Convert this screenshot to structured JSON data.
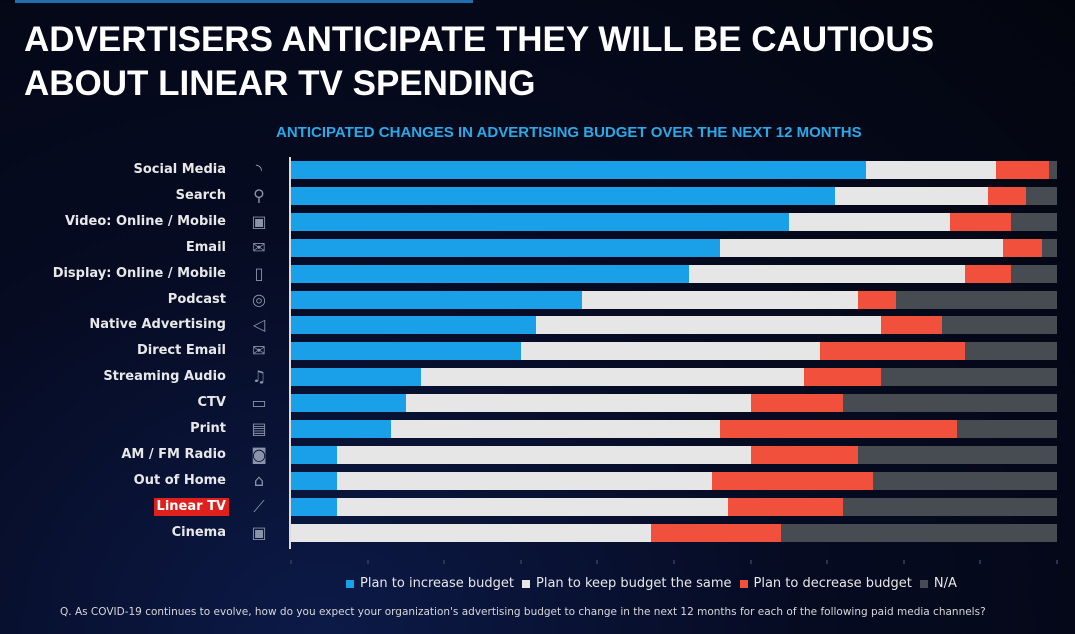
{
  "title": "ADVERTISERS ANTICIPATE THEY WILL BE CAUTIOUS ABOUT LINEAR TV SPENDING",
  "footnote": "Q. As COVID-19 continues to evolve, how do you expect your organization's advertising budget to change in the next 12 months for each of the following paid media channels?",
  "colors": {
    "increase": "#1aa0e8",
    "same": "#e6e6e6",
    "decrease": "#f0503c",
    "na": "#474b52",
    "highlight": "#e0201c",
    "subtitle": "#2aa9e8"
  },
  "chart_data": {
    "type": "bar",
    "orientation": "horizontal",
    "stacked": true,
    "title": "ANTICIPATED CHANGES IN ADVERTISING BUDGET OVER THE NEXT 12 MONTHS",
    "xlim": [
      0,
      100
    ],
    "unit": "%",
    "legend_position": "bottom",
    "highlighted_category": "Linear TV",
    "categories": [
      "Social Media",
      "Search",
      "Video: Online / Mobile",
      "Email",
      "Display: Online / Mobile",
      "Podcast",
      "Native Advertising",
      "Direct Email",
      "Streaming Audio",
      "CTV",
      "Print",
      "AM / FM Radio",
      "Out of Home",
      "Linear TV",
      "Cinema"
    ],
    "icons": [
      "wifi-signal-icon",
      "search-icon",
      "video-screen-icon",
      "envelope-icon",
      "mobile-phone-icon",
      "podcast-icon",
      "megaphone-icon",
      "envelope-icon",
      "headphones-icon",
      "tv-icon",
      "newspaper-icon",
      "radio-icon",
      "house-icon",
      "remote-control-icon",
      "cinema-screen-icon"
    ],
    "series": [
      {
        "name": "Plan to increase budget",
        "key": "increase",
        "values": [
          75,
          71,
          65,
          56,
          52,
          38,
          32,
          30,
          17,
          15,
          13,
          6,
          6,
          6,
          0
        ]
      },
      {
        "name": "Plan to keep budget the same",
        "key": "same",
        "values": [
          17,
          20,
          21,
          37,
          36,
          36,
          45,
          39,
          50,
          45,
          43,
          54,
          49,
          51,
          47
        ]
      },
      {
        "name": "Plan to decrease budget",
        "key": "decrease",
        "values": [
          7,
          5,
          8,
          5,
          6,
          5,
          8,
          19,
          10,
          12,
          31,
          14,
          21,
          15,
          17
        ]
      },
      {
        "name": "N/A",
        "key": "na",
        "values": [
          1,
          4,
          6,
          2,
          6,
          21,
          15,
          12,
          23,
          28,
          13,
          26,
          24,
          28,
          36
        ]
      }
    ]
  }
}
